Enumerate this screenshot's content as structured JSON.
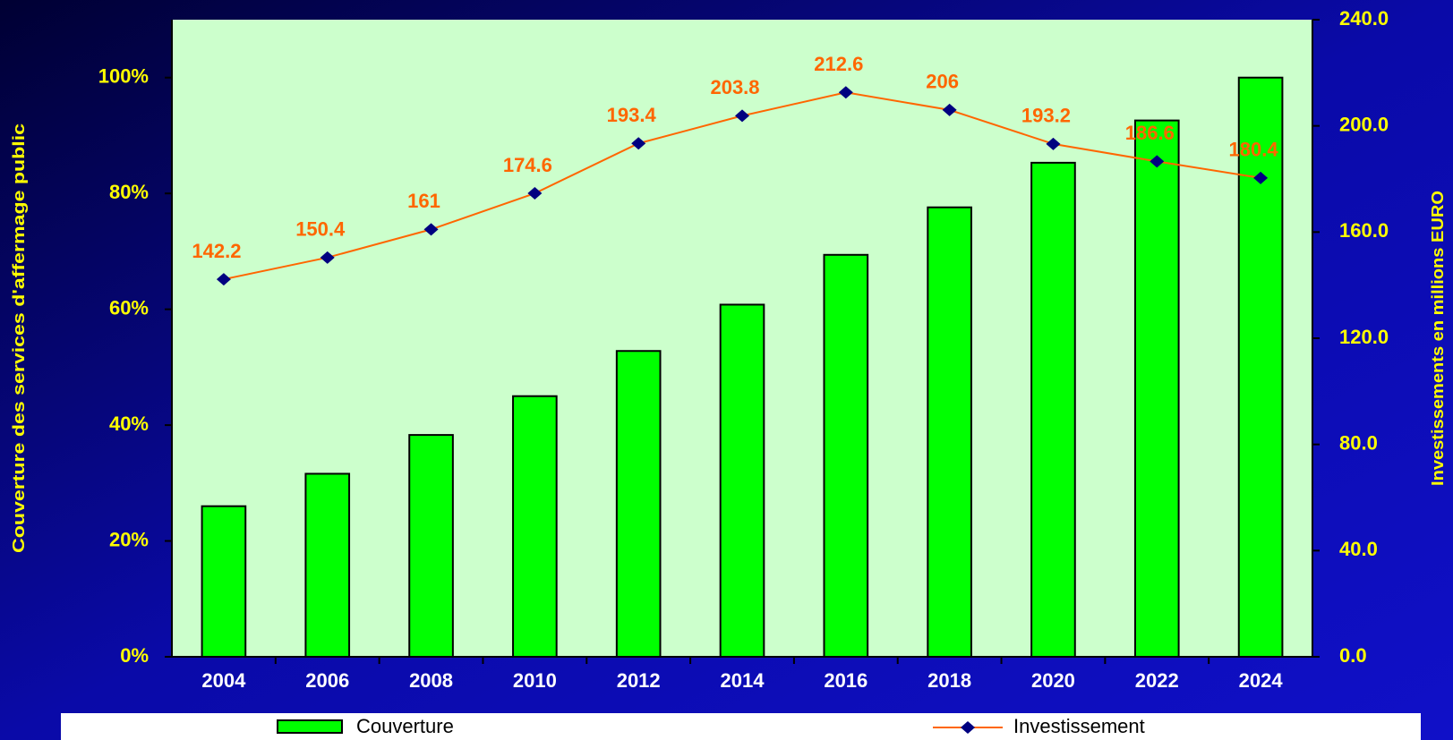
{
  "chart_data": {
    "type": "bar",
    "categories": [
      "2004",
      "2006",
      "2008",
      "2010",
      "2012",
      "2014",
      "2016",
      "2018",
      "2020",
      "2022",
      "2024"
    ],
    "series": [
      {
        "name": "Couverture",
        "color": "#00ff00",
        "values": [
          26,
          31.6,
          38.3,
          45,
          52.8,
          60.8,
          69.4,
          77.6,
          85.3,
          92.6,
          100
        ]
      },
      {
        "name": "Investissement",
        "type": "line",
        "axis": "y2",
        "color": "#ff6600",
        "marker_color": "#000080",
        "values": [
          142.2,
          150.4,
          161,
          174.6,
          193.4,
          203.8,
          212.6,
          206,
          193.2,
          186.6,
          180.4
        ]
      }
    ],
    "y_label": "Couverture des services d'affermage public",
    "y2_label": "Investissements en millions EURO",
    "ylim": [
      0,
      110
    ],
    "yticks": [
      {
        "value": 0,
        "label": "0%"
      },
      {
        "value": 20,
        "label": "20%"
      },
      {
        "value": 40,
        "label": "40%"
      },
      {
        "value": 60,
        "label": "60%"
      },
      {
        "value": 80,
        "label": "80%"
      },
      {
        "value": 100,
        "label": "100%"
      }
    ],
    "y2lim": [
      0,
      240
    ],
    "y2ticks": [
      {
        "value": 0,
        "label": "0.0"
      },
      {
        "value": 40,
        "label": "40.0"
      },
      {
        "value": 80,
        "label": "80.0"
      },
      {
        "value": 120,
        "label": "120.0"
      },
      {
        "value": 160,
        "label": "160.0"
      },
      {
        "value": 200,
        "label": "200.0"
      },
      {
        "value": 240,
        "label": "240.0"
      }
    ],
    "legend": "bottom"
  }
}
